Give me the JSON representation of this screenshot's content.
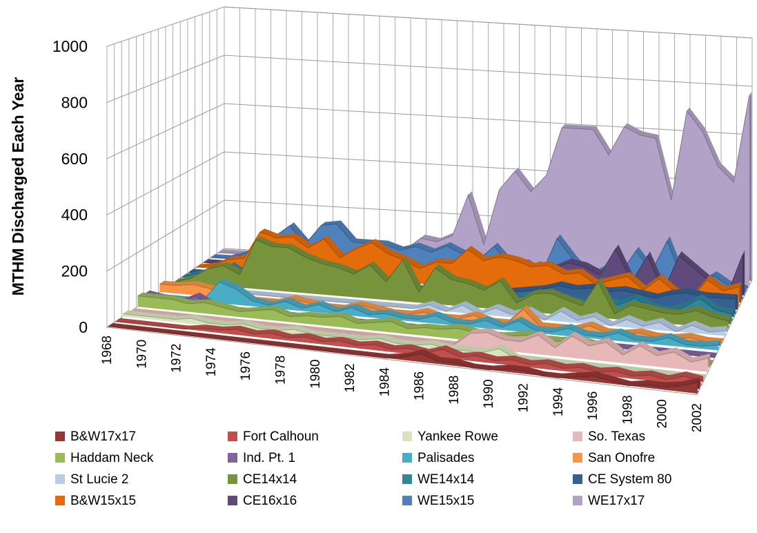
{
  "chart_data": {
    "type": "area3d",
    "y_axis_title": "MTHM Discharged Each Year",
    "categories": [
      "1968",
      null,
      "1970",
      null,
      "1972",
      null,
      "1974",
      null,
      "1976",
      null,
      "1978",
      null,
      "1980",
      null,
      "1982",
      null,
      "1984",
      null,
      "1986",
      null,
      "1988",
      null,
      "1990",
      null,
      "1992",
      null,
      "1994",
      null,
      "1996",
      null,
      "1998",
      null,
      "2000",
      null,
      "2002"
    ],
    "ylim": [
      0,
      1000
    ],
    "yticks": [
      0,
      200,
      400,
      600,
      800,
      1000
    ],
    "grid": true,
    "legend_position": "bottom",
    "series": [
      {
        "name": "B&W17x17",
        "color": "#953735",
        "values": [
          0,
          0,
          0,
          0,
          0,
          0,
          0,
          0,
          0,
          0,
          0,
          0,
          0,
          0,
          0,
          0,
          0,
          10,
          30,
          10,
          10,
          0,
          0,
          10,
          10,
          0,
          0,
          10,
          20,
          10,
          0,
          10,
          10,
          20,
          40
        ]
      },
      {
        "name": "Fort Calhoun",
        "color": "#c0504d",
        "values": [
          0,
          0,
          0,
          0,
          0,
          10,
          10,
          20,
          10,
          20,
          10,
          20,
          10,
          20,
          10,
          20,
          10,
          20,
          10,
          30,
          10,
          20,
          10,
          20,
          10,
          20,
          10,
          20,
          10,
          20,
          10,
          20,
          10,
          30,
          20
        ]
      },
      {
        "name": "Yankee Rowe",
        "color": "#d7e4bd",
        "values": [
          10,
          10,
          10,
          10,
          20,
          10,
          10,
          20,
          10,
          10,
          20,
          10,
          10,
          10,
          10,
          20,
          10,
          10,
          20,
          10,
          10,
          10,
          30,
          0,
          0,
          0,
          0,
          0,
          0,
          0,
          0,
          0,
          0,
          0,
          0
        ]
      },
      {
        "name": "So. Texas",
        "color": "#e6b9b8",
        "values": [
          0,
          0,
          0,
          0,
          0,
          0,
          0,
          0,
          0,
          0,
          0,
          0,
          0,
          0,
          0,
          0,
          0,
          0,
          0,
          0,
          50,
          60,
          40,
          40,
          70,
          30,
          80,
          50,
          70,
          30,
          70,
          40,
          60,
          30,
          50
        ]
      },
      {
        "name": "Haddam Neck",
        "color": "#9bbb59",
        "values": [
          40,
          40,
          40,
          30,
          40,
          30,
          20,
          30,
          40,
          20,
          30,
          30,
          40,
          20,
          30,
          40,
          20,
          30,
          30,
          40,
          30,
          20,
          30,
          40,
          30,
          30,
          40,
          30,
          0,
          0,
          0,
          0,
          0,
          0,
          0
        ]
      },
      {
        "name": "Ind. Pt. 1",
        "color": "#8064a2",
        "values": [
          30,
          20,
          10,
          40,
          10,
          0,
          0,
          0,
          0,
          0,
          0,
          0,
          0,
          0,
          0,
          0,
          0,
          0,
          0,
          0,
          0,
          0,
          0,
          0,
          0,
          0,
          0,
          0,
          0,
          0,
          0,
          0,
          0,
          0,
          0
        ]
      },
      {
        "name": "Palisades",
        "color": "#4bacc6",
        "values": [
          0,
          0,
          0,
          0,
          80,
          60,
          20,
          10,
          30,
          10,
          30,
          10,
          30,
          10,
          20,
          10,
          10,
          30,
          10,
          10,
          30,
          10,
          40,
          10,
          10,
          30,
          10,
          10,
          30,
          10,
          10,
          30,
          10,
          10,
          20
        ]
      },
      {
        "name": "San Onofre",
        "color": "#f79646",
        "values": [
          30,
          30,
          40,
          30,
          20,
          0,
          0,
          0,
          20,
          10,
          0,
          0,
          20,
          10,
          0,
          0,
          15,
          0,
          0,
          20,
          0,
          0,
          60,
          0,
          0,
          0,
          20,
          0,
          0,
          10,
          0,
          0,
          10,
          0,
          0
        ]
      },
      {
        "name": "St Lucie 2",
        "color": "#b9cde5",
        "values": [
          0,
          0,
          0,
          0,
          0,
          0,
          0,
          0,
          0,
          0,
          0,
          0,
          0,
          0,
          0,
          0,
          20,
          0,
          30,
          0,
          30,
          10,
          30,
          0,
          40,
          10,
          30,
          0,
          30,
          10,
          30,
          0,
          30,
          10,
          20
        ]
      },
      {
        "name": "CE14x14",
        "color": "#77933c",
        "values": [
          0,
          20,
          60,
          80,
          50,
          190,
          170,
          170,
          140,
          120,
          110,
          90,
          130,
          70,
          160,
          40,
          140,
          100,
          90,
          70,
          110,
          30,
          70,
          80,
          60,
          40,
          140,
          20,
          60,
          50,
          40,
          40,
          60,
          40,
          30
        ]
      },
      {
        "name": "WE14x14",
        "color": "#31859c",
        "values": [
          0,
          20,
          30,
          60,
          20,
          40,
          50,
          20,
          30,
          20,
          40,
          30,
          20,
          30,
          40,
          20,
          30,
          20,
          30,
          40,
          20,
          30,
          50,
          20,
          30,
          20,
          40,
          30,
          60,
          30,
          20,
          40,
          80,
          40,
          30
        ]
      },
      {
        "name": "CE System 80",
        "color": "#376092",
        "values": [
          0,
          0,
          0,
          0,
          0,
          0,
          0,
          0,
          0,
          0,
          0,
          0,
          0,
          0,
          0,
          0,
          0,
          0,
          0,
          20,
          20,
          30,
          40,
          60,
          50,
          60,
          50,
          60,
          50,
          40,
          60,
          70,
          60,
          60,
          60
        ]
      },
      {
        "name": "B&W15x15",
        "color": "#e46c0a",
        "values": [
          0,
          10,
          40,
          50,
          160,
          140,
          150,
          110,
          150,
          80,
          120,
          150,
          110,
          90,
          60,
          90,
          90,
          150,
          110,
          130,
          120,
          100,
          110,
          80,
          90,
          50,
          70,
          90,
          40,
          90,
          40,
          20,
          100,
          60,
          80
        ]
      },
      {
        "name": "CE16x16",
        "color": "#604a7b",
        "values": [
          0,
          0,
          0,
          0,
          0,
          0,
          0,
          0,
          0,
          0,
          0,
          0,
          0,
          10,
          20,
          20,
          30,
          30,
          40,
          60,
          40,
          80,
          70,
          100,
          90,
          60,
          170,
          40,
          150,
          10,
          160,
          110,
          60,
          10,
          180
        ]
      },
      {
        "name": "WE15x15",
        "color": "#4f81bd",
        "values": [
          0,
          0,
          20,
          60,
          100,
          150,
          80,
          160,
          170,
          100,
          100,
          100,
          80,
          100,
          80,
          110,
          80,
          60,
          120,
          50,
          60,
          20,
          170,
          90,
          20,
          60,
          40,
          140,
          60,
          190,
          30,
          20,
          60,
          20,
          10
        ]
      },
      {
        "name": "WE17x17",
        "color": "#b3a2c7",
        "values": [
          0,
          0,
          0,
          0,
          0,
          0,
          0,
          5,
          10,
          20,
          30,
          40,
          60,
          110,
          100,
          130,
          300,
          100,
          330,
          410,
          330,
          400,
          600,
          600,
          600,
          500,
          620,
          590,
          580,
          330,
          700,
          620,
          480,
          420,
          780
        ]
      }
    ]
  }
}
